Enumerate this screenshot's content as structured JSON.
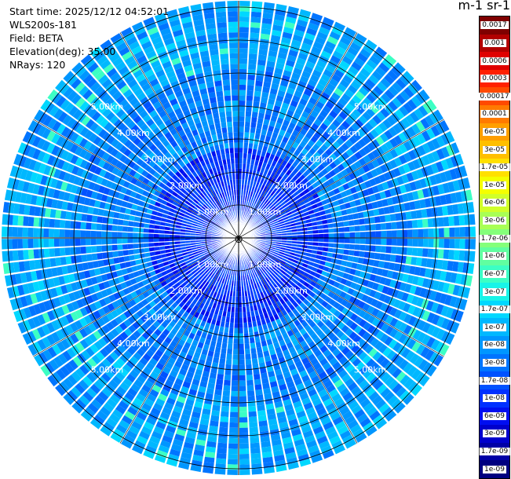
{
  "info": {
    "start_time": "Start time: 2025/12/12 04:52:01",
    "instrument": "WLS200s-181",
    "field": "Field: BETA",
    "elevation": "Elevation(deg): 35.00",
    "nrays": "NRays: 120"
  },
  "colorbar": {
    "title": "m-1 sr-1",
    "labels": [
      "0.0017",
      "0.001",
      "0.0006",
      "0.0003",
      "0.00017",
      "0.0001",
      "6e-05",
      "3e-05",
      "1.7e-05",
      "1e-05",
      "6e-06",
      "3e-06",
      "1.7e-06",
      "1e-06",
      "6e-07",
      "3e-07",
      "1.7e-07",
      "1e-07",
      "6e-08",
      "3e-08",
      "1.7e-08",
      "1e-08",
      "6e-09",
      "3e-09",
      "1.7e-09",
      "1e-09"
    ],
    "colors": [
      "#7f0000",
      "#b20000",
      "#e00000",
      "#ff2000",
      "#ff4a00",
      "#ff7a00",
      "#ff9e00",
      "#ffbf00",
      "#ffe000",
      "#f4ff00",
      "#d0ff2a",
      "#a8ff55",
      "#84ff7a",
      "#60ffa0",
      "#3cffc4",
      "#18f4e8",
      "#00d8ff",
      "#00b8ff",
      "#0096ff",
      "#0074ff",
      "#0052ff",
      "#0030ff",
      "#000ef0",
      "#0000cc",
      "#0000a6",
      "#000080"
    ]
  },
  "ppi": {
    "center_marker": "⊗",
    "range_labels": [
      "1.00km",
      "2.00km",
      "3.00km",
      "4.00km",
      "5.00km"
    ],
    "nrays": 120
  }
}
